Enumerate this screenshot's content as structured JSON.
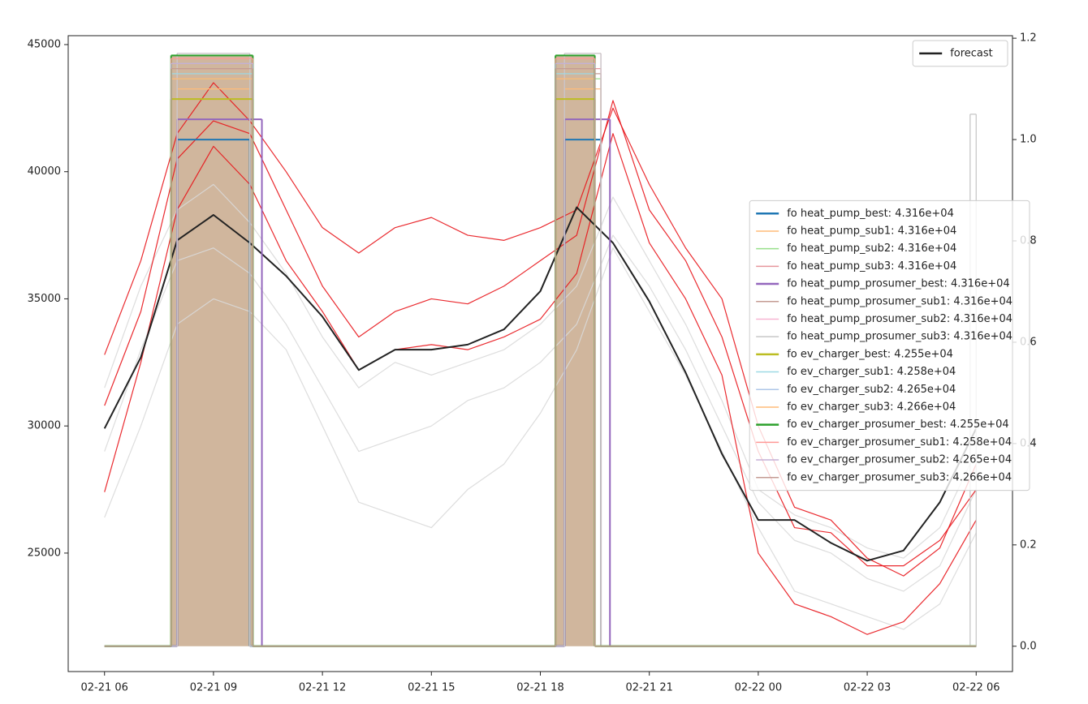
{
  "chart_data": {
    "type": "line",
    "x": [
      "02-21 06",
      "02-21 07",
      "02-21 08",
      "02-21 09",
      "02-21 10",
      "02-21 11",
      "02-21 12",
      "02-21 13",
      "02-21 14",
      "02-21 15",
      "02-21 16",
      "02-21 17",
      "02-21 18",
      "02-21 19",
      "02-21 20",
      "02-21 21",
      "02-21 22",
      "02-21 23",
      "02-22 00",
      "02-22 01",
      "02-22 02",
      "02-22 03",
      "02-22 04",
      "02-22 05",
      "02-22 06"
    ],
    "xlim": [
      "02-21 05",
      "02-22 07"
    ],
    "xticks": [
      "02-21 06",
      "02-21 09",
      "02-21 12",
      "02-21 15",
      "02-21 18",
      "02-21 21",
      "02-22 00",
      "02-22 03",
      "02-22 06"
    ],
    "ylim": [
      20340,
      45350
    ],
    "yticks": [
      25000,
      30000,
      35000,
      40000,
      45000
    ],
    "y2lim": [
      -0.05,
      1.205
    ],
    "y2ticks": [
      {
        "value": 0,
        "label": "0.0"
      },
      0.2,
      0.4,
      0.6,
      0.8,
      {
        "value": 1,
        "label": "1.0"
      },
      1.2
    ],
    "legend": "upper right",
    "legend2": "center right",
    "series": [
      {
        "name": "forecast",
        "color": "#222222",
        "values": [
          29900,
          32700,
          37300,
          38300,
          37200,
          35900,
          34300,
          32200,
          33000,
          33000,
          33200,
          33800,
          35300,
          38600,
          37200,
          34900,
          32100,
          28900,
          26300,
          26300,
          25400,
          24700,
          25100,
          27000,
          29900
        ]
      }
    ],
    "ensemble": [
      {
        "color": "#d9d9d9",
        "values": [
          29000,
          33000,
          36500,
          37000,
          36000,
          34000,
          31500,
          29000,
          29500,
          30000,
          31000,
          31500,
          32500,
          34000,
          37500,
          35500,
          33000,
          30000,
          27000,
          25500,
          25000,
          24000,
          23500,
          24500,
          27500
        ]
      },
      {
        "color": "#d9d9d9",
        "values": [
          26400,
          30000,
          34000,
          35000,
          34500,
          33000,
          30000,
          27000,
          26500,
          26000,
          27500,
          28500,
          30500,
          33000,
          37000,
          34500,
          32000,
          29000,
          26000,
          23500,
          23000,
          22500,
          22000,
          23000,
          25800
        ]
      },
      {
        "color": "#d9d9d9",
        "values": [
          31500,
          35500,
          38500,
          39500,
          38000,
          36000,
          33500,
          31500,
          32500,
          32000,
          32500,
          33000,
          34000,
          35500,
          39000,
          36500,
          34000,
          31000,
          27500,
          26500,
          26000,
          25200,
          24800,
          26000,
          29000
        ]
      },
      {
        "color": "#e8141a",
        "values": [
          32800,
          36500,
          41500,
          43500,
          42000,
          40000,
          37800,
          36800,
          37800,
          38200,
          37500,
          37300,
          37800,
          38500,
          42500,
          39500,
          37000,
          35000,
          30000,
          26800,
          26300,
          24800,
          24100,
          25200,
          28500
        ]
      },
      {
        "color": "#e8141a",
        "values": [
          30800,
          34500,
          40500,
          42000,
          41500,
          38500,
          35500,
          33500,
          34500,
          35000,
          34800,
          35500,
          36500,
          37500,
          42800,
          38500,
          36500,
          33500,
          29000,
          26000,
          25800,
          24500,
          24500,
          25500,
          27500
        ]
      },
      {
        "color": "#e8141a",
        "values": [
          27400,
          32500,
          38500,
          41000,
          39500,
          36500,
          34500,
          32200,
          33000,
          33200,
          33000,
          33500,
          34200,
          36000,
          41500,
          37200,
          35000,
          32000,
          25000,
          23000,
          22500,
          21800,
          22300,
          23800,
          26300
        ]
      }
    ],
    "steps": [
      {
        "name": "fo heat_pump_best: 4.316e+04",
        "color": "#1f77b4",
        "axis": "y2",
        "x": [
          "02-21 06",
          "02-21 08:00",
          "02-21 10:00",
          "02-21 18:40",
          "02-21 19:40",
          "02-22 06"
        ],
        "values": [
          0,
          1.0,
          0,
          1.0,
          0,
          0
        ]
      },
      {
        "name": "fo heat_pump_sub1: 4.316e+04",
        "color": "#ffbb78",
        "axis": "y2",
        "x": [
          "02-21 06",
          "02-21 08:00",
          "02-21 10:00",
          "02-21 18:40",
          "02-21 19:40",
          "02-22 06"
        ],
        "values": [
          0,
          1.1,
          0,
          1.1,
          0,
          0
        ]
      },
      {
        "name": "fo heat_pump_sub2: 4.316e+04",
        "color": "#98df8a",
        "axis": "y2",
        "x": [
          "02-21 06",
          "02-21 08:00",
          "02-21 10:00",
          "02-21 18:40",
          "02-21 19:40",
          "02-22 06"
        ],
        "values": [
          0,
          1.12,
          0,
          1.12,
          0,
          0
        ]
      },
      {
        "name": "fo heat_pump_sub3: 4.316e+04",
        "color": "#e7969c",
        "axis": "y2",
        "x": [
          "02-21 06",
          "02-21 08:00",
          "02-21 10:00",
          "02-21 18:40",
          "02-21 19:40",
          "02-22 06"
        ],
        "values": [
          0,
          1.14,
          0,
          1.14,
          0,
          0
        ]
      },
      {
        "name": "fo heat_pump_prosumer_best: 4.316e+04",
        "color": "#9467bd",
        "axis": "y2",
        "x": [
          "02-21 06",
          "02-21 08:00",
          "02-21 10:20",
          "02-21 18:40",
          "02-21 19:55",
          "02-22 06"
        ],
        "values": [
          0,
          1.04,
          0,
          1.04,
          0,
          0
        ]
      },
      {
        "name": "fo heat_pump_prosumer_sub1: 4.316e+04",
        "color": "#c49c94",
        "axis": "y2",
        "x": [
          "02-21 06",
          "02-21 08:00",
          "02-21 10:00",
          "02-21 18:40",
          "02-21 19:40",
          "02-22 06"
        ],
        "values": [
          0,
          1.13,
          0,
          1.13,
          0,
          0
        ]
      },
      {
        "name": "fo heat_pump_prosumer_sub2: 4.316e+04",
        "color": "#f7b6d2",
        "axis": "y2",
        "x": [
          "02-21 06",
          "02-21 08:00",
          "02-21 10:00",
          "02-21 18:40",
          "02-21 19:40",
          "02-22 06"
        ],
        "values": [
          0,
          1.17,
          0,
          1.17,
          0,
          0
        ]
      },
      {
        "name": "fo heat_pump_prosumer_sub3: 4.316e+04",
        "color": "#c7c7c7",
        "axis": "y2",
        "x": [
          "02-21 06",
          "02-21 08:00",
          "02-21 10:00",
          "02-21 18:40",
          "02-21 19:40",
          "02-22 05:50",
          "02-22 06"
        ],
        "values": [
          0,
          1.17,
          0,
          1.17,
          0,
          1.05,
          0
        ]
      },
      {
        "name": "fo ev_charger_best: 4.255e+04",
        "color": "#bcbd22",
        "axis": "y2",
        "x": [
          "02-21 06",
          "02-21 07:50",
          "02-21 10:05",
          "02-21 18:25",
          "02-21 19:30",
          "02-22 06"
        ],
        "values": [
          0,
          1.08,
          0,
          1.08,
          0,
          0
        ]
      },
      {
        "name": "fo ev_charger_sub1: 4.258e+04",
        "color": "#9edae5",
        "axis": "y2",
        "x": [
          "02-21 06",
          "02-21 07:50",
          "02-21 10:05",
          "02-21 18:25",
          "02-21 19:30",
          "02-22 06"
        ],
        "values": [
          0,
          1.13,
          0,
          1.13,
          0,
          0
        ]
      },
      {
        "name": "fo ev_charger_sub2: 4.265e+04",
        "color": "#aec7e8",
        "axis": "y2",
        "x": [
          "02-21 06",
          "02-21 07:50",
          "02-21 10:05",
          "02-21 18:25",
          "02-21 19:30",
          "02-22 06"
        ],
        "values": [
          0,
          1.15,
          0,
          1.15,
          0,
          0
        ]
      },
      {
        "name": "fo ev_charger_sub3: 4.266e+04",
        "color": "#ffbb78",
        "axis": "y2",
        "x": [
          "02-21 06",
          "02-21 07:50",
          "02-21 10:05",
          "02-21 18:25",
          "02-21 19:30",
          "02-22 06"
        ],
        "values": [
          0,
          1.12,
          0,
          1.12,
          0,
          0
        ]
      },
      {
        "name": "fo ev_charger_prosumer_best: 4.255e+04",
        "color": "#2ca02c",
        "axis": "y2",
        "fill": "#c8a98c",
        "x": [
          "02-21 06",
          "02-21 07:50",
          "02-21 10:05",
          "02-21 18:25",
          "02-21 19:30",
          "02-22 06"
        ],
        "values": [
          0,
          1.166,
          0,
          1.166,
          0,
          0
        ]
      },
      {
        "name": "fo ev_charger_prosumer_sub1: 4.258e+04",
        "color": "#ff9896",
        "axis": "y2",
        "x": [
          "02-21 06",
          "02-21 07:50",
          "02-21 10:05",
          "02-21 18:25",
          "02-21 19:30",
          "02-22 06"
        ],
        "values": [
          0,
          1.16,
          0,
          1.16,
          0,
          0
        ]
      },
      {
        "name": "fo ev_charger_prosumer_sub2: 4.265e+04",
        "color": "#c5b0d5",
        "axis": "y2",
        "x": [
          "02-21 06",
          "02-21 07:50",
          "02-21 10:05",
          "02-21 18:25",
          "02-21 19:30",
          "02-22 06"
        ],
        "values": [
          0,
          1.15,
          0,
          1.15,
          0,
          0
        ]
      },
      {
        "name": "fo ev_charger_prosumer_sub3: 4.266e+04",
        "color": "#c49c94",
        "axis": "y2",
        "x": [
          "02-21 06",
          "02-21 07:50",
          "02-21 10:05",
          "02-21 18:25",
          "02-21 19:30",
          "02-22 06"
        ],
        "values": [
          0,
          1.14,
          0,
          1.14,
          0,
          0
        ]
      }
    ]
  }
}
